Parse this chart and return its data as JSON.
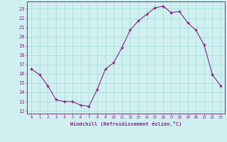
{
  "x": [
    0,
    1,
    2,
    3,
    4,
    5,
    6,
    7,
    8,
    9,
    10,
    11,
    12,
    13,
    14,
    15,
    16,
    17,
    18,
    19,
    20,
    21,
    22,
    23
  ],
  "y": [
    16.5,
    15.9,
    14.7,
    13.2,
    13.0,
    13.0,
    12.6,
    12.5,
    14.3,
    16.5,
    17.2,
    18.8,
    20.7,
    21.7,
    22.4,
    23.1,
    23.3,
    22.6,
    22.7,
    21.5,
    20.7,
    19.1,
    15.9,
    14.7
  ],
  "xlabel": "Windchill (Refroidissement éolien,°C)",
  "yticks": [
    12,
    13,
    14,
    15,
    16,
    17,
    18,
    19,
    20,
    21,
    22,
    23
  ],
  "xticks": [
    0,
    1,
    2,
    3,
    4,
    5,
    6,
    7,
    8,
    9,
    10,
    11,
    12,
    13,
    14,
    15,
    16,
    17,
    18,
    19,
    20,
    21,
    22,
    23
  ],
  "line_color": "#882288",
  "marker_color": "#882288",
  "bg_color": "#d0f0f0",
  "grid_color": "#aadddd",
  "axis_color": "#882288",
  "tick_color": "#882288",
  "label_color": "#882288"
}
